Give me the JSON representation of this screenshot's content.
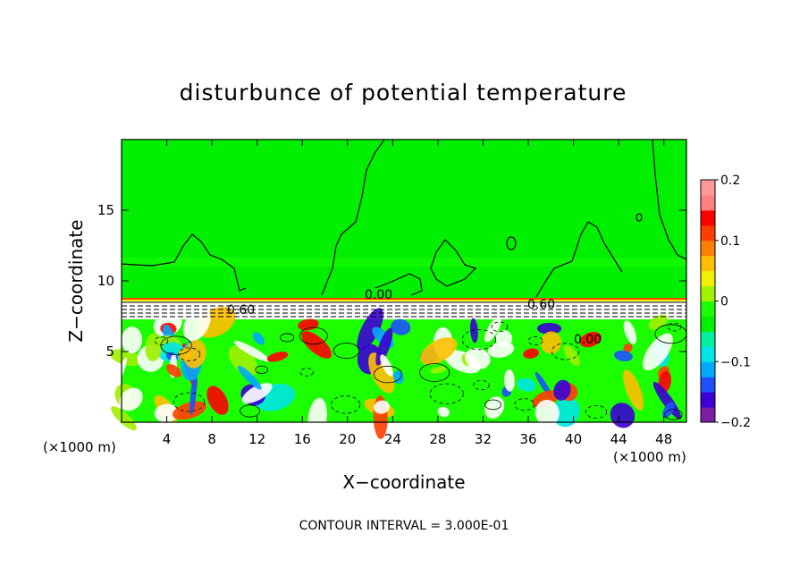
{
  "chart_data": {
    "type": "heatmap",
    "title": "disturbunce of potential temperature",
    "xlabel": "X−coordinate",
    "ylabel": "Z−coordinate",
    "x_unit_left": "(×1000 m)",
    "x_unit_right": "(×1000 m)",
    "xlim": [
      0,
      50
    ],
    "ylim": [
      0,
      20
    ],
    "x_ticks": [
      4,
      8,
      12,
      16,
      20,
      24,
      28,
      32,
      36,
      40,
      44,
      48
    ],
    "y_ticks": [
      5,
      10,
      15
    ],
    "grid": false,
    "colorbar": {
      "range": [
        -0.2,
        0.2
      ],
      "tick_values": [
        0.2,
        0.1,
        0,
        -0.1,
        -0.2
      ],
      "tick_labels": [
        "0.2",
        "0.1",
        "0",
        "−0.1",
        "−0.2"
      ],
      "colors": [
        "#7a1fa2",
        "#3a00d6",
        "#1e50ff",
        "#00aaff",
        "#00e6e6",
        "#00f0a0",
        "#00f000",
        "#1bff00",
        "#a0f000",
        "#f0f000",
        "#ffbf00",
        "#ff8000",
        "#ff3d00",
        "#ff0000",
        "#ff8080",
        "#ff9999"
      ]
    },
    "contour_labels": [
      {
        "text": "0.00",
        "x": 22.8,
        "y": 9.2
      },
      {
        "text": "0.60",
        "x": 10.3,
        "y": 7.9
      },
      {
        "text": "0.60",
        "x": 37.7,
        "y": 8.4
      },
      {
        "text": "0.00",
        "x": 40.5,
        "y": 5.9
      }
    ],
    "contour_interval_text": "CONTOUR INTERVAL = 3.000E-01",
    "colors": {
      "upper_background": "#00f000",
      "frame": "#000000"
    }
  }
}
